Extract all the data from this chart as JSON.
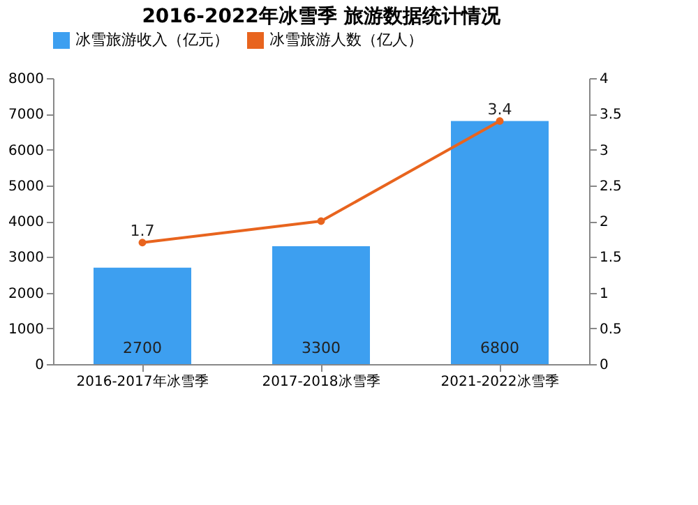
{
  "chart_data": {
    "type": "bar",
    "title": "2016-2022年冰雪季 旅游数据统计情况",
    "categories": [
      "2016-2017年冰雪季",
      "2017-2018冰雪季",
      "2021-2022冰雪季"
    ],
    "series": [
      {
        "name": "冰雪旅游收入（亿元）",
        "color": "#3d9ff0",
        "values": [
          2700,
          3300,
          6800
        ],
        "value_labels": [
          "2700",
          "3300",
          "6800"
        ]
      },
      {
        "name": "冰雪旅游人数（亿人）",
        "type": "line",
        "axis": "y2",
        "color": "#e8641e",
        "values": [
          1.7,
          2.0,
          3.4
        ],
        "value_labels": [
          "1.7",
          null,
          "3.4"
        ]
      }
    ],
    "ylim": [
      0,
      8000
    ],
    "yticks": [
      0,
      1000,
      2000,
      3000,
      4000,
      5000,
      6000,
      7000,
      8000
    ],
    "y2lim": [
      0,
      4
    ],
    "y2ticks": [
      0,
      0.5,
      1,
      1.5,
      2,
      2.5,
      3,
      3.5,
      4
    ],
    "legend": "top",
    "grid": false,
    "marker": "circle"
  }
}
